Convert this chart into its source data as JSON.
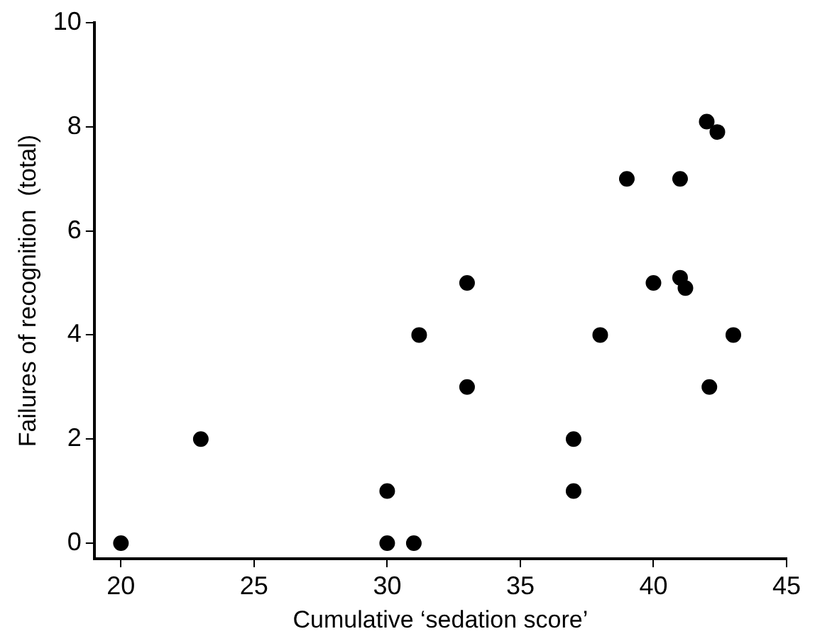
{
  "chart_data": {
    "type": "scatter",
    "xlabel": "Cumulative ‘sedation score’",
    "ylabel": "Failures of recognition  (total)",
    "x": [
      20,
      23,
      30,
      30,
      31,
      31.2,
      33,
      33,
      37,
      37,
      38,
      39,
      40,
      41,
      41,
      41.2,
      42,
      42.4,
      42.1,
      43
    ],
    "values": [
      0,
      2,
      0,
      1,
      0,
      4,
      5,
      3,
      2,
      1,
      4,
      7,
      5,
      5.1,
      7,
      4.9,
      8.1,
      7.9,
      3,
      4
    ],
    "color": "#000000",
    "marker": "circle",
    "xlim": [
      19,
      45
    ],
    "xticks": [
      20,
      25,
      30,
      35,
      40,
      45
    ],
    "ylim": [
      -0.3,
      10
    ],
    "yticks": [
      0,
      2,
      4,
      6,
      8,
      10
    ],
    "grid": false,
    "legend": false
  }
}
